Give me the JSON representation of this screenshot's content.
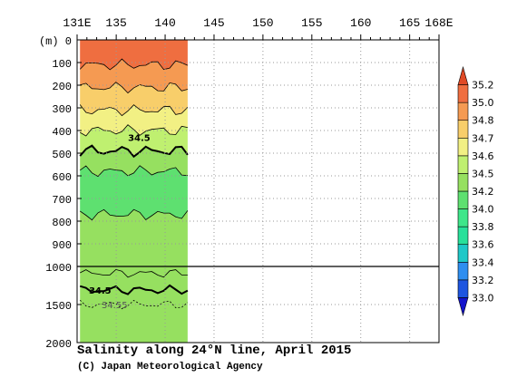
{
  "chart_data": {
    "type": "heatmap",
    "title": "Salinity along 24°N line, April 2015",
    "credit": "(C) Japan Meteorological Agency",
    "x_axis": {
      "ticks": [
        {
          "value": 131,
          "label": "131E"
        },
        {
          "value": 135,
          "label": "135"
        },
        {
          "value": 140,
          "label": "140"
        },
        {
          "value": 145,
          "label": "145"
        },
        {
          "value": 150,
          "label": "150"
        },
        {
          "value": 155,
          "label": "155"
        },
        {
          "value": 160,
          "label": "160"
        },
        {
          "value": 165,
          "label": "165"
        },
        {
          "value": 168,
          "label": "168E"
        }
      ],
      "range": [
        131,
        168
      ]
    },
    "y_axis": {
      "unit_label": "(m)",
      "upper_ticks": [
        0,
        100,
        200,
        300,
        400,
        500,
        600,
        700,
        800,
        900,
        1000
      ],
      "lower_ticks": [
        1500,
        2000
      ],
      "upper_range": [
        0,
        1000
      ],
      "lower_range": [
        1000,
        2000
      ]
    },
    "data_extent_lon": [
      131.3,
      142.3
    ],
    "colorbar": {
      "levels": [
        33.0,
        33.2,
        33.4,
        33.6,
        33.8,
        34.0,
        34.2,
        34.5,
        34.6,
        34.7,
        34.8,
        35.0,
        35.2
      ],
      "labels": [
        "33.0",
        "33.2",
        "33.4",
        "33.6",
        "33.8",
        "34.0",
        "34.2",
        "34.5",
        "34.6",
        "34.7",
        "34.8",
        "35.0",
        "35.2"
      ],
      "colors": [
        "#1414cc",
        "#1e55e0",
        "#2e8ef0",
        "#1ec8c8",
        "#28e09a",
        "#3ee68a",
        "#5ee070",
        "#96e060",
        "#bff070",
        "#f2f084",
        "#f8ce6a",
        "#f59a52",
        "#ef6e40",
        "#e04a26"
      ]
    },
    "salinity_bands": {
      "upper": [
        {
          "from_m": 0,
          "to_m": 110,
          "range": "≥35.0"
        },
        {
          "from_m": 110,
          "to_m": 210,
          "range": "34.8–35.0"
        },
        {
          "from_m": 210,
          "to_m": 310,
          "range": "34.7–34.8"
        },
        {
          "from_m": 310,
          "to_m": 400,
          "range": "34.6–34.7"
        },
        {
          "from_m": 400,
          "to_m": 490,
          "range": "34.5–34.6"
        },
        {
          "from_m": 490,
          "to_m": 580,
          "range": "34.2–34.5"
        },
        {
          "from_m": 580,
          "to_m": 770,
          "range": "34.0–34.2"
        },
        {
          "from_m": 770,
          "to_m": 1000,
          "range": "34.2–34.5"
        }
      ],
      "lower": [
        {
          "from_m": 1000,
          "to_m": 2000,
          "range": "34.2–34.5 / 34.5–34.6"
        }
      ]
    },
    "contour_labels": [
      {
        "text": "34.5",
        "lon": 136.2,
        "depth_m": 430
      },
      {
        "text": "34.5",
        "lon": 132.2,
        "depth_m": 1310
      },
      {
        "text": "34.55",
        "lon": 133.5,
        "depth_m": 1500
      }
    ],
    "grid": true
  }
}
